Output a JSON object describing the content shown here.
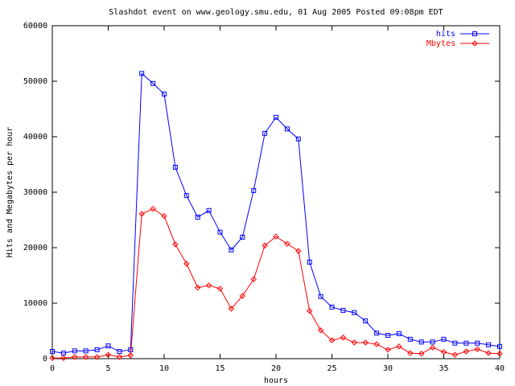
{
  "chart_data": {
    "type": "line",
    "title": "Slashdot event on www.geology.smu.edu, 01 Aug 2005 Posted 09:08pm EDT",
    "x_label": "hours",
    "y_label": "Hits and Megabytes per hour",
    "x": [
      0,
      1,
      2,
      3,
      4,
      5,
      6,
      7,
      8,
      9,
      10,
      11,
      12,
      13,
      14,
      15,
      16,
      17,
      18,
      19,
      20,
      21,
      22,
      23,
      24,
      25,
      26,
      27,
      28,
      29,
      30,
      31,
      32,
      33,
      34,
      35,
      36,
      37,
      38,
      39,
      40
    ],
    "series": [
      {
        "name": "hits",
        "color": "#0000ff",
        "marker": "square",
        "values": [
          1300,
          1000,
          1400,
          1400,
          1600,
          2300,
          1300,
          1600,
          51400,
          49600,
          47700,
          34500,
          29400,
          25500,
          26700,
          22800,
          19600,
          21900,
          30300,
          40600,
          43500,
          41400,
          39600,
          17400,
          11200,
          9300,
          8700,
          8300,
          6800,
          4600,
          4200,
          4500,
          3500,
          3000,
          3000,
          3500,
          2800,
          2800,
          2800,
          2500,
          2200
        ]
      },
      {
        "name": "Mbytes",
        "color": "#ff0000",
        "marker": "diamond",
        "values": [
          100,
          100,
          300,
          300,
          300,
          700,
          300,
          600,
          26100,
          27000,
          25700,
          20600,
          17100,
          12800,
          13200,
          12600,
          9000,
          11300,
          14300,
          20400,
          22000,
          20700,
          19400,
          8600,
          5100,
          3300,
          3800,
          2900,
          2900,
          2600,
          1600,
          2200,
          1000,
          900,
          2000,
          1200,
          700,
          1300,
          1700,
          1000,
          900
        ]
      }
    ],
    "xlim": [
      0,
      40
    ],
    "xticks": [
      0,
      5,
      10,
      15,
      20,
      25,
      30,
      35,
      40
    ],
    "ylim": [
      0,
      60000
    ],
    "yticks": [
      0,
      10000,
      20000,
      30000,
      40000,
      50000,
      60000
    ],
    "grid": false,
    "legend": "top-right"
  }
}
